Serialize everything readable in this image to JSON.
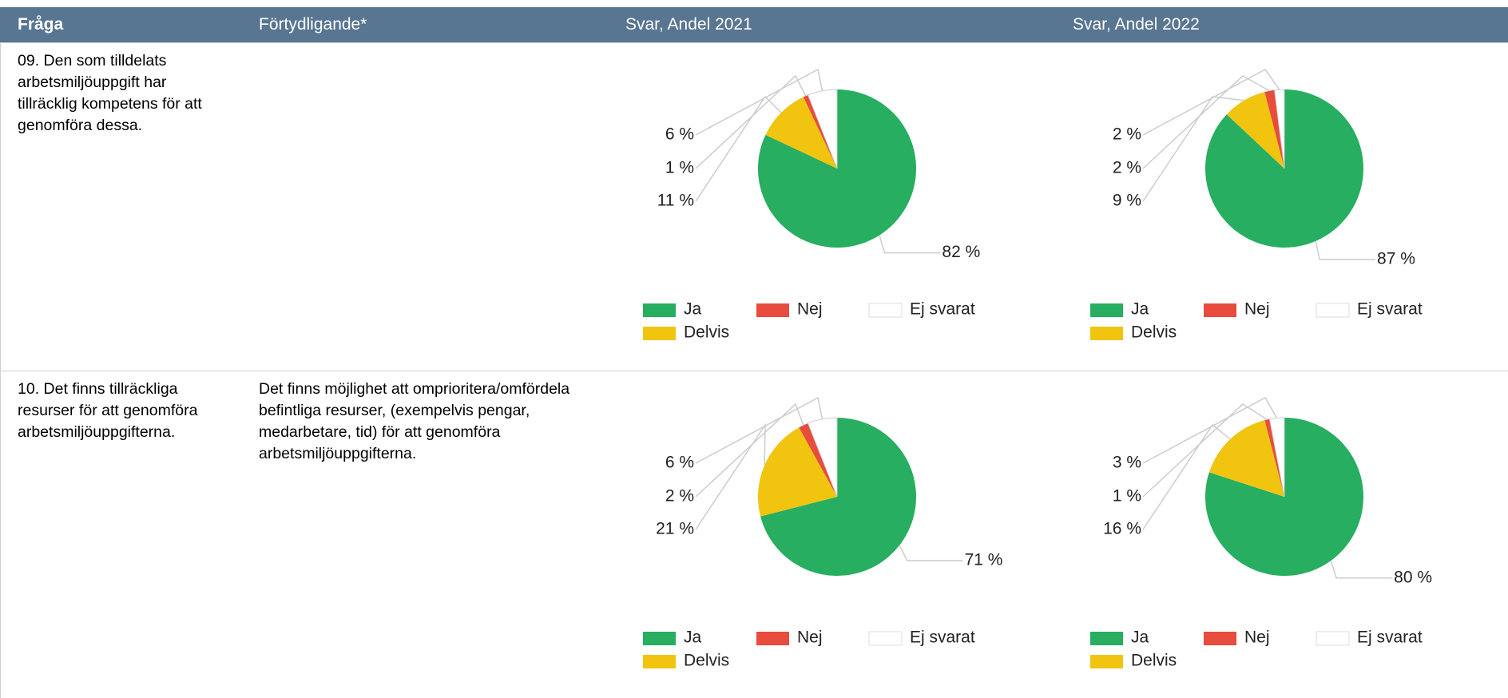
{
  "header": [
    "Fråga",
    "Förtydligande*",
    "Svar, Andel 2021",
    "Svar, Andel 2022"
  ],
  "rows": [
    {
      "question": "09. Den som tilldelats arbetsmiljöuppgift har tillräcklig kompetens för att genomföra dessa.",
      "charts": [
        {
          "type": "pie",
          "categories": [
            "Ja",
            "Delvis",
            "Nej",
            "Ej svarat"
          ],
          "values": [
            82,
            11,
            1,
            6
          ],
          "value_labels": [
            "82 %",
            "11 %",
            "1 %",
            "6 %"
          ],
          "colors": [
            "#27ae60",
            "#f1c40f",
            "#e74c3c",
            "#ffffff"
          ]
        },
        {
          "type": "pie",
          "categories": [
            "Ja",
            "Delvis",
            "Nej",
            "Ej svarat"
          ],
          "values": [
            87,
            9,
            2,
            2
          ],
          "value_labels": [
            "87 %",
            "9 %",
            "2 %",
            "2 %"
          ],
          "colors": [
            "#27ae60",
            "#f1c40f",
            "#e74c3c",
            "#ffffff"
          ]
        }
      ]
    },
    {
      "question": "10. Det finns tillräckliga resurser för att genomföra arbetsmiljöuppgifterna.",
      "clarification": "Det finns möjlighet att omprioritera/omfördela befintliga resurser, (exempelvis pengar, medarbetare, tid) för att genomföra arbetsmiljöuppgifterna.",
      "charts": [
        {
          "type": "pie",
          "categories": [
            "Ja",
            "Delvis",
            "Nej",
            "Ej svarat"
          ],
          "values": [
            71,
            21,
            2,
            6
          ],
          "value_labels": [
            "71 %",
            "21 %",
            "2 %",
            "6 %"
          ],
          "colors": [
            "#27ae60",
            "#f1c40f",
            "#e74c3c",
            "#ffffff"
          ]
        },
        {
          "type": "pie",
          "categories": [
            "Ja",
            "Delvis",
            "Nej",
            "Ej svarat"
          ],
          "values": [
            80,
            16,
            1,
            3
          ],
          "value_labels": [
            "80 %",
            "16 %",
            "1 %",
            "3 %"
          ],
          "colors": [
            "#27ae60",
            "#f1c40f",
            "#e74c3c",
            "#ffffff"
          ]
        }
      ]
    }
  ]
}
